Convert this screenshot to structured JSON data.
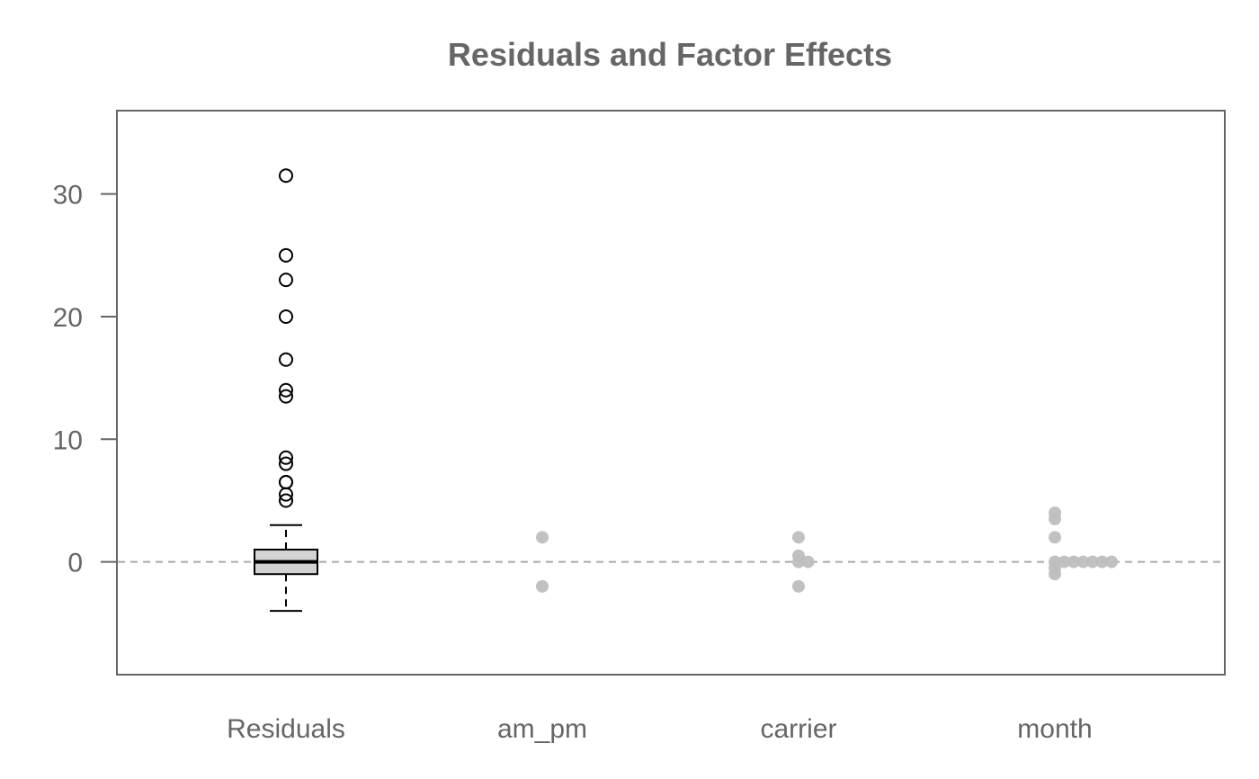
{
  "chart_data": {
    "type": "boxplot",
    "title": "Residuals and Factor Effects",
    "xlabel": "",
    "ylabel": "",
    "categories": [
      "Residuals",
      "am_pm",
      "carrier",
      "month"
    ],
    "ylim": [
      -9.2,
      36.8
    ],
    "yticks": [
      0,
      10,
      20,
      30
    ],
    "grid": false,
    "reference_line": {
      "y": 0,
      "style": "dashed"
    },
    "residuals_box": {
      "whisker_low": -4,
      "q1": -1,
      "median": 0,
      "q3": 1,
      "whisker_high": 3,
      "outliers": [
        31.5,
        25,
        23,
        20,
        16.5,
        14,
        13.5,
        8.5,
        8,
        6.5,
        6.5,
        5.5,
        5
      ]
    },
    "effects": {
      "am_pm": [
        2,
        -2
      ],
      "carrier": [
        2,
        0.5,
        0,
        0,
        -2
      ],
      "month": [
        4,
        3.5,
        2,
        0,
        -0.5,
        -1,
        0,
        0,
        0,
        0,
        0,
        0
      ]
    },
    "colors": {
      "text": "#666666",
      "box_fill": "#d3d3d3",
      "points": "#bebebe",
      "reference_line": "#aaaaaa"
    }
  }
}
